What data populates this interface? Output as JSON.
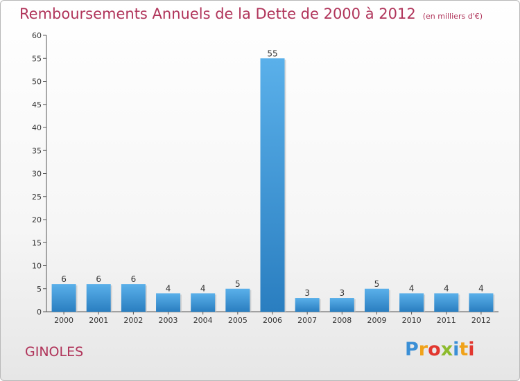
{
  "title": "Remboursements Annuels de la Dette de 2000 à 2012",
  "unit": "(en milliers d'€)",
  "place": "GINOLES",
  "logo_text": "Proxiti",
  "colors": {
    "title": "#b0345a",
    "bar_top": "#5ab0ea",
    "bar_bottom": "#2a7ec0"
  },
  "chart_data": {
    "type": "bar",
    "title": "Remboursements Annuels de la Dette de 2000 à 2012",
    "xlabel": "",
    "ylabel": "",
    "categories": [
      "2000",
      "2001",
      "2002",
      "2003",
      "2004",
      "2005",
      "2006",
      "2007",
      "2008",
      "2009",
      "2010",
      "2011",
      "2012"
    ],
    "values": [
      6,
      6,
      6,
      4,
      4,
      5,
      55,
      3,
      3,
      5,
      4,
      4,
      4
    ],
    "ylim": [
      0,
      60
    ],
    "yticks": [
      0,
      5,
      10,
      15,
      20,
      25,
      30,
      35,
      40,
      45,
      50,
      55,
      60
    ],
    "grid": false,
    "data_labels": true
  }
}
